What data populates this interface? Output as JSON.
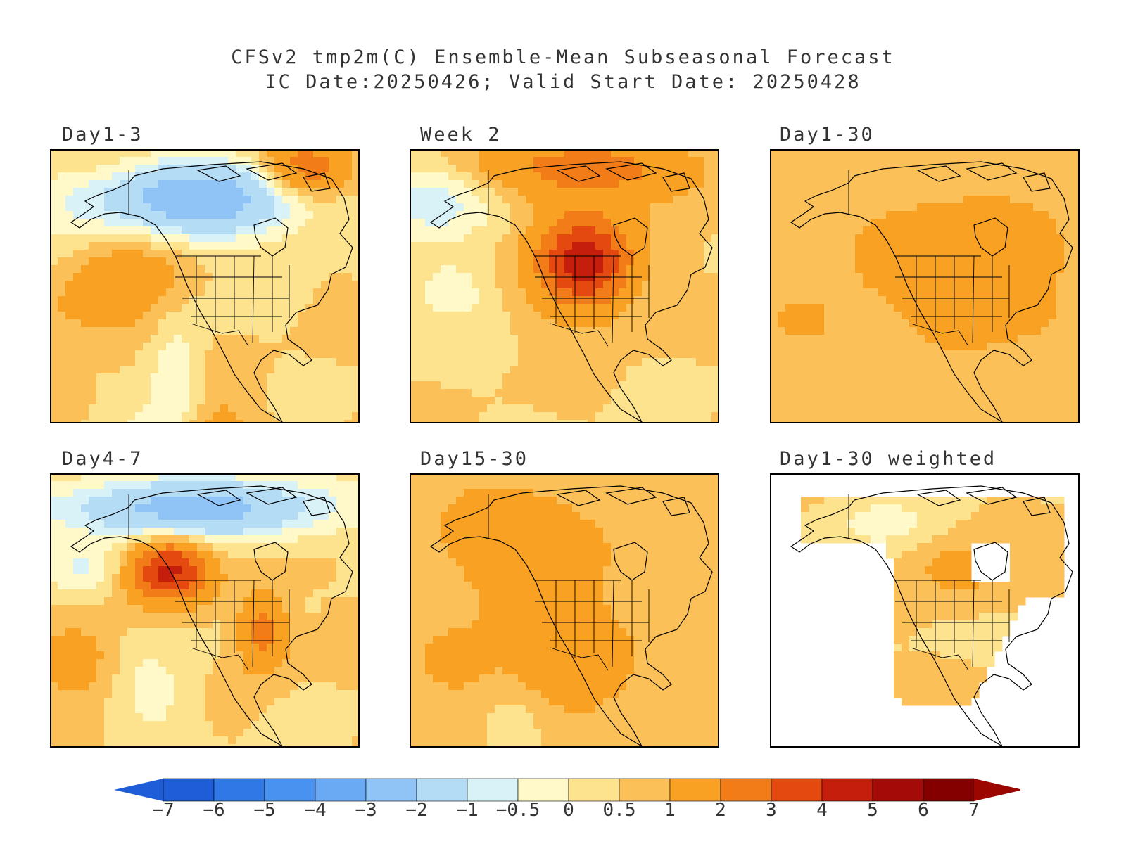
{
  "title_line1": "CFSv2 tmp2m(C) Ensemble-Mean Subseasonal Forecast",
  "title_line2": "IC Date:20250426; Valid Start Date: 20250428",
  "panels": [
    {
      "label": "Day1-3",
      "pattern": "day1_3"
    },
    {
      "label": "Week 2",
      "pattern": "week2"
    },
    {
      "label": "Day1-30",
      "pattern": "day1_30"
    },
    {
      "label": "Day4-7",
      "pattern": "day4_7"
    },
    {
      "label": "Day15-30",
      "pattern": "day15_30"
    },
    {
      "label": "Day1-30 weighted",
      "pattern": "weighted"
    }
  ],
  "colorbar": {
    "levels": [
      "-7",
      "-6",
      "-5",
      "-4",
      "-3",
      "-2",
      "-1",
      "-0.5",
      "0",
      "0.5",
      "1",
      "2",
      "3",
      "4",
      "5",
      "6",
      "7"
    ],
    "colors": [
      "#1e5cd8",
      "#2f78e6",
      "#4a92ef",
      "#6aaaf5",
      "#90c4f7",
      "#b5dcf5",
      "#d8f2f8",
      "#fff8c8",
      "#fde38e",
      "#fbc158",
      "#f8a123",
      "#f27c18",
      "#e44a10",
      "#c51e0c",
      "#a30a08",
      "#840000"
    ],
    "low_color": "#1e5cd8",
    "high_color": "#9c0600"
  }
}
